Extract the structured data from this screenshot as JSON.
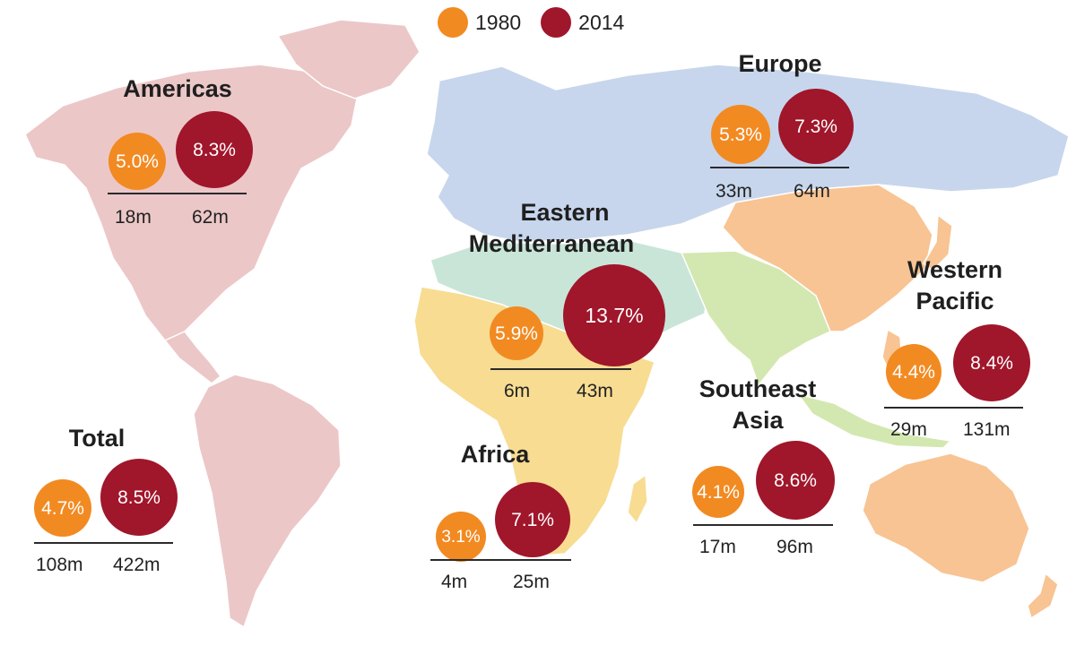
{
  "legend": [
    {
      "label": "1980",
      "color": "#f28a22"
    },
    {
      "label": "2014",
      "color": "#a0162b"
    }
  ],
  "colors": {
    "y1980": "#f28a22",
    "y2014": "#a0162b",
    "americas_land": "#ecc7c8",
    "europe_land": "#c7d6ec",
    "eastern_mediterranean_land": "#c9e5d8",
    "africa_land": "#f7dc92",
    "southeast_asia_land": "#d3e8b0",
    "western_pacific_land": "#f8c493"
  },
  "regions": {
    "americas": {
      "name": "Americas",
      "pct_1980": "5.0%",
      "pct_2014": "8.3%",
      "count_1980": "18m",
      "count_2014": "62m"
    },
    "europe": {
      "name": "Europe",
      "pct_1980": "5.3%",
      "pct_2014": "7.3%",
      "count_1980": "33m",
      "count_2014": "64m"
    },
    "eastern_mediterranean": {
      "name_line1": "Eastern",
      "name_line2": "Mediterranean",
      "pct_1980": "5.9%",
      "pct_2014": "13.7%",
      "count_1980": "6m",
      "count_2014": "43m"
    },
    "western_pacific": {
      "name_line1": "Western",
      "name_line2": "Pacific",
      "pct_1980": "4.4%",
      "pct_2014": "8.4%",
      "count_1980": "29m",
      "count_2014": "131m"
    },
    "southeast_asia": {
      "name_line1": "Southeast",
      "name_line2": "Asia",
      "pct_1980": "4.1%",
      "pct_2014": "8.6%",
      "count_1980": "17m",
      "count_2014": "96m"
    },
    "africa": {
      "name": "Africa",
      "pct_1980": "3.1%",
      "pct_2014": "7.1%",
      "count_1980": "4m",
      "count_2014": "25m"
    },
    "total": {
      "name": "Total",
      "pct_1980": "4.7%",
      "pct_2014": "8.5%",
      "count_1980": "108m",
      "count_2014": "422m"
    }
  }
}
